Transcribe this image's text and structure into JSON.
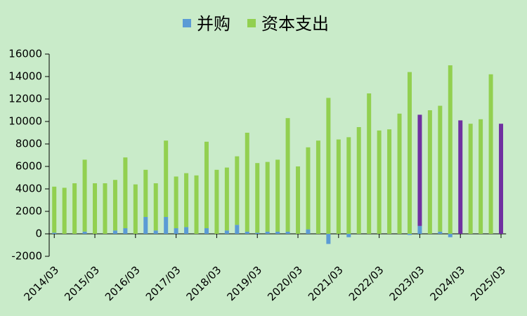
{
  "chart_data": {
    "type": "stacked_bar",
    "categories": [
      "2014/03",
      null,
      null,
      null,
      "2015/03",
      null,
      null,
      null,
      "2016/03",
      null,
      null,
      null,
      "2017/03",
      null,
      null,
      null,
      "2018/03",
      null,
      null,
      null,
      "2019/03",
      null,
      null,
      null,
      "2020/03",
      null,
      null,
      null,
      "2021/03",
      null,
      null,
      null,
      "2022/03",
      null,
      null,
      null,
      "2023/03",
      null,
      null,
      null,
      "2024/03",
      null,
      null,
      null,
      "2025/03"
    ],
    "series": [
      {
        "name": "并购",
        "color": "#5b9bd5",
        "values": [
          100,
          0,
          0,
          200,
          0,
          0,
          300,
          500,
          0,
          1500,
          300,
          1500,
          500,
          600,
          0,
          500,
          0,
          300,
          800,
          200,
          100,
          200,
          200,
          200,
          0,
          400,
          0,
          -900,
          0,
          -300,
          0,
          0,
          0,
          0,
          0,
          -100,
          700,
          0,
          200,
          -300,
          0,
          0,
          0,
          0,
          0
        ]
      },
      {
        "name": "资本支出",
        "color": "#92d050",
        "colors": [
          "#92d050",
          "#92d050",
          "#92d050",
          "#92d050",
          "#92d050",
          "#92d050",
          "#92d050",
          "#92d050",
          "#92d050",
          "#92d050",
          "#92d050",
          "#92d050",
          "#92d050",
          "#92d050",
          "#92d050",
          "#92d050",
          "#92d050",
          "#92d050",
          "#92d050",
          "#92d050",
          "#92d050",
          "#92d050",
          "#92d050",
          "#92d050",
          "#92d050",
          "#92d050",
          "#92d050",
          "#92d050",
          "#92d050",
          "#92d050",
          "#92d050",
          "#92d050",
          "#92d050",
          "#92d050",
          "#92d050",
          "#92d050",
          "#7030a0",
          "#92d050",
          "#92d050",
          "#92d050",
          "#7030a0",
          "#92d050",
          "#92d050",
          "#92d050",
          "#7030a0"
        ],
        "values": [
          4100,
          4100,
          4500,
          6400,
          4500,
          4500,
          4500,
          6300,
          4400,
          4200,
          4200,
          6800,
          4600,
          4800,
          5200,
          7700,
          5700,
          5600,
          6100,
          8800,
          6200,
          6200,
          6400,
          10100,
          6000,
          7300,
          8300,
          12100,
          8400,
          8600,
          9500,
          12500,
          9200,
          9300,
          10700,
          14400,
          9900,
          11000,
          11200,
          15000,
          10100,
          9800,
          10200,
          14200,
          9800
        ]
      }
    ],
    "ylim": [
      -2000,
      16000
    ],
    "yticks": [
      -2000,
      0,
      2000,
      4000,
      6000,
      8000,
      10000,
      12000,
      14000,
      16000
    ],
    "legend": "top"
  }
}
